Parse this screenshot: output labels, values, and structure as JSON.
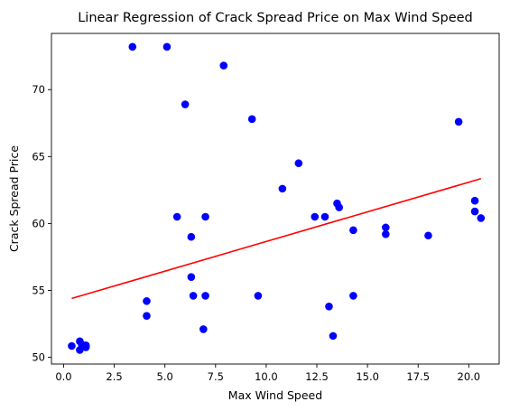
{
  "chart_data": {
    "type": "scatter",
    "title": "Linear Regression of Crack Spread Price on Max Wind Speed",
    "xlabel": "Max Wind Speed",
    "ylabel": "Crack Spread Price",
    "xlim": [
      -0.6,
      21.5
    ],
    "ylim": [
      49.5,
      74.2
    ],
    "xticks": [
      0.0,
      2.5,
      5.0,
      7.5,
      10.0,
      12.5,
      15.0,
      17.5,
      20.0
    ],
    "xtick_labels": [
      "0.0",
      "2.5",
      "5.0",
      "7.5",
      "10.0",
      "12.5",
      "15.0",
      "17.5",
      "20.0"
    ],
    "yticks": [
      50,
      55,
      60,
      65,
      70
    ],
    "ytick_labels": [
      "50",
      "55",
      "60",
      "65",
      "70"
    ],
    "grid": false,
    "series": [
      {
        "kind": "scatter",
        "color": "#0000ff",
        "points": [
          {
            "x": 0.4,
            "y": 50.85
          },
          {
            "x": 0.8,
            "y": 50.55
          },
          {
            "x": 0.8,
            "y": 51.2
          },
          {
            "x": 0.9,
            "y": 50.95
          },
          {
            "x": 1.1,
            "y": 50.75
          },
          {
            "x": 1.1,
            "y": 50.9
          },
          {
            "x": 3.4,
            "y": 73.2
          },
          {
            "x": 4.1,
            "y": 54.2
          },
          {
            "x": 4.1,
            "y": 53.1
          },
          {
            "x": 5.1,
            "y": 73.2
          },
          {
            "x": 5.6,
            "y": 60.5
          },
          {
            "x": 6.0,
            "y": 68.9
          },
          {
            "x": 6.3,
            "y": 59.0
          },
          {
            "x": 6.3,
            "y": 56.0
          },
          {
            "x": 6.4,
            "y": 54.6
          },
          {
            "x": 6.9,
            "y": 52.1
          },
          {
            "x": 7.0,
            "y": 54.6
          },
          {
            "x": 7.0,
            "y": 60.5
          },
          {
            "x": 7.9,
            "y": 71.8
          },
          {
            "x": 9.3,
            "y": 67.8
          },
          {
            "x": 9.6,
            "y": 54.6
          },
          {
            "x": 10.8,
            "y": 62.6
          },
          {
            "x": 11.6,
            "y": 64.5
          },
          {
            "x": 12.4,
            "y": 60.5
          },
          {
            "x": 12.9,
            "y": 60.5
          },
          {
            "x": 13.1,
            "y": 53.8
          },
          {
            "x": 13.3,
            "y": 51.6
          },
          {
            "x": 13.5,
            "y": 61.5
          },
          {
            "x": 13.6,
            "y": 61.2
          },
          {
            "x": 14.3,
            "y": 59.5
          },
          {
            "x": 14.3,
            "y": 54.6
          },
          {
            "x": 15.9,
            "y": 59.7
          },
          {
            "x": 15.9,
            "y": 59.2
          },
          {
            "x": 18.0,
            "y": 59.1
          },
          {
            "x": 19.5,
            "y": 67.6
          },
          {
            "x": 20.3,
            "y": 61.7
          },
          {
            "x": 20.3,
            "y": 60.9
          },
          {
            "x": 20.6,
            "y": 60.4
          }
        ]
      },
      {
        "kind": "line",
        "color": "#ff0000",
        "points": [
          {
            "x": 0.4,
            "y": 54.4
          },
          {
            "x": 20.6,
            "y": 63.35
          }
        ]
      }
    ]
  }
}
